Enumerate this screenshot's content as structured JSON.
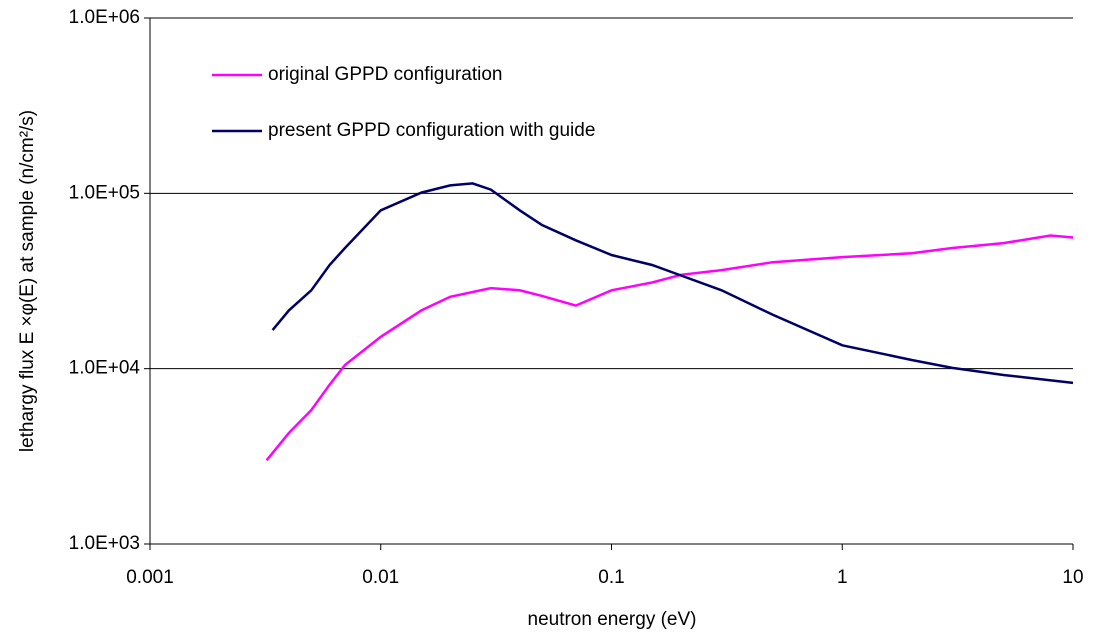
{
  "chart_data": {
    "type": "line",
    "xlabel": "neutron energy (eV)",
    "ylabel": "lethargy flux E ×φ(E) at sample (n/cm²/s)",
    "xscale": "log",
    "yscale": "log",
    "grid": true,
    "legend": "upper left",
    "xlim": [
      0.001,
      10
    ],
    "xticks": [
      0.001,
      0.01,
      0.1,
      1,
      10
    ],
    "ylim": [
      1000,
      1000000
    ],
    "yticks": [
      {
        "value": 1000,
        "label": "1.0E+03"
      },
      {
        "value": 10000,
        "label": "1.0E+04"
      },
      {
        "value": 100000,
        "label": "1.0E+05"
      },
      {
        "value": 1000000,
        "label": "1.0E+06"
      }
    ],
    "series": [
      {
        "name": "original GPPD configuration",
        "color": "#ff00ff",
        "x": [
          0.0032,
          0.004,
          0.005,
          0.006,
          0.007,
          0.01,
          0.015,
          0.02,
          0.03,
          0.04,
          0.05,
          0.07,
          0.1,
          0.15,
          0.2,
          0.3,
          0.5,
          1,
          2,
          3,
          5,
          8,
          10
        ],
        "values": [
          3000,
          4300,
          5800,
          8100,
          10500,
          15200,
          21500,
          25700,
          28800,
          28000,
          26000,
          22900,
          28000,
          31000,
          34300,
          36500,
          40500,
          43300,
          45500,
          48800,
          52000,
          57500,
          56000
        ]
      },
      {
        "name": "present GPPD configuration with guide",
        "color": "#000066",
        "x": [
          0.0034,
          0.004,
          0.005,
          0.006,
          0.007,
          0.01,
          0.015,
          0.02,
          0.025,
          0.03,
          0.04,
          0.05,
          0.07,
          0.1,
          0.15,
          0.2,
          0.3,
          0.5,
          1,
          2,
          3,
          5,
          10
        ],
        "values": [
          16600,
          21500,
          28000,
          39000,
          48800,
          80000,
          101000,
          111000,
          114000,
          105000,
          80000,
          66000,
          54000,
          44500,
          39000,
          34000,
          28000,
          20300,
          13600,
          11200,
          10100,
          9200,
          8300
        ]
      }
    ]
  }
}
